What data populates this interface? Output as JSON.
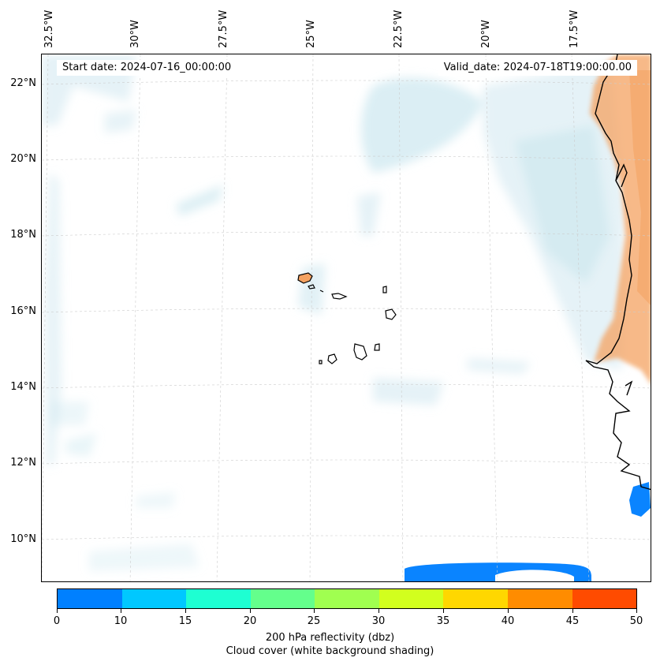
{
  "header": {
    "start_date": "Start date: 2024-07-16_00:00:00",
    "valid_date": "Valid_date: 2024-07-18T19:00:00.00"
  },
  "axes": {
    "longitude_labels": [
      "32.5°W",
      "30°W",
      "27.5°W",
      "25°W",
      "22.5°W",
      "20°W",
      "17.5°W"
    ],
    "latitude_labels": [
      "22°N",
      "20°N",
      "18°N",
      "16°N",
      "14°N",
      "12°N",
      "10°N"
    ]
  },
  "colorbar": {
    "ticks": [
      "0",
      "10",
      "15",
      "20",
      "25",
      "30",
      "35",
      "40",
      "45",
      "50"
    ],
    "colors": [
      "#0080ff",
      "#00c8ff",
      "#1effd2",
      "#64ff8c",
      "#a0ff50",
      "#d2ff1e",
      "#ffd700",
      "#ff8c00",
      "#ff4b00"
    ],
    "label_line1": "200 hPa reflectivity (dbz)",
    "label_line2": "Cloud cover (white background shading)"
  },
  "map_colors": {
    "cloud": "#cfe8f0",
    "land": "#f4a261",
    "reflectivity_low": "#0a84ff",
    "coast": "#000000",
    "grid": "#cccccc"
  }
}
